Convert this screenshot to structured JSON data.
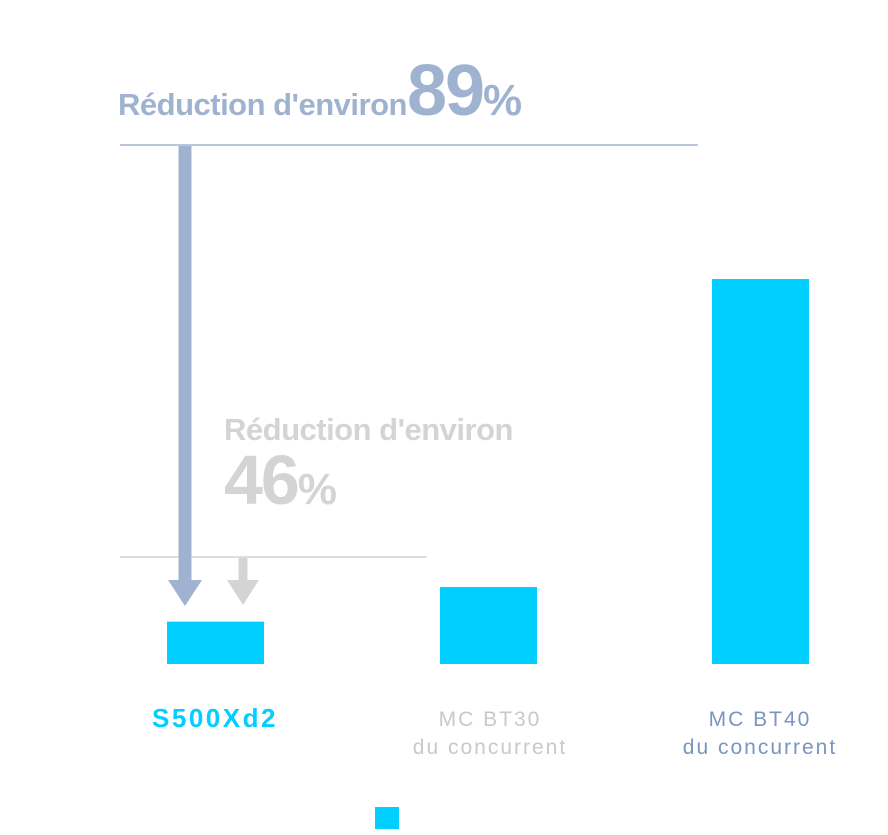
{
  "chart_data": {
    "type": "bar",
    "categories": [
      "S500Xd2",
      "MC BT30 du concurrent",
      "MC BT40 du concurrent"
    ],
    "category_labels": [
      {
        "line1": "S500Xd2",
        "line2": ""
      },
      {
        "line1": "MC BT30",
        "line2": "du concurrent"
      },
      {
        "line1": "MC BT40",
        "line2": "du concurrent"
      }
    ],
    "values": [
      11,
      20,
      100
    ],
    "ylim": [
      0,
      100
    ],
    "bar_color": "#00cfff",
    "label_colors": [
      "#00cfff",
      "#c9c9c9",
      "#7b95bf"
    ],
    "annotations": [
      {
        "text": "Réduction d'environ",
        "value": "89",
        "unit": "%",
        "reference_value": 100,
        "color": "#9fb3d0"
      },
      {
        "text": "Réduction d'environ",
        "value": "46",
        "unit": "%",
        "reference_value": 20,
        "color": "#d4d4d4"
      }
    ],
    "legend": {
      "swatch_color": "#00cfff",
      "position": "bottom-center"
    }
  }
}
